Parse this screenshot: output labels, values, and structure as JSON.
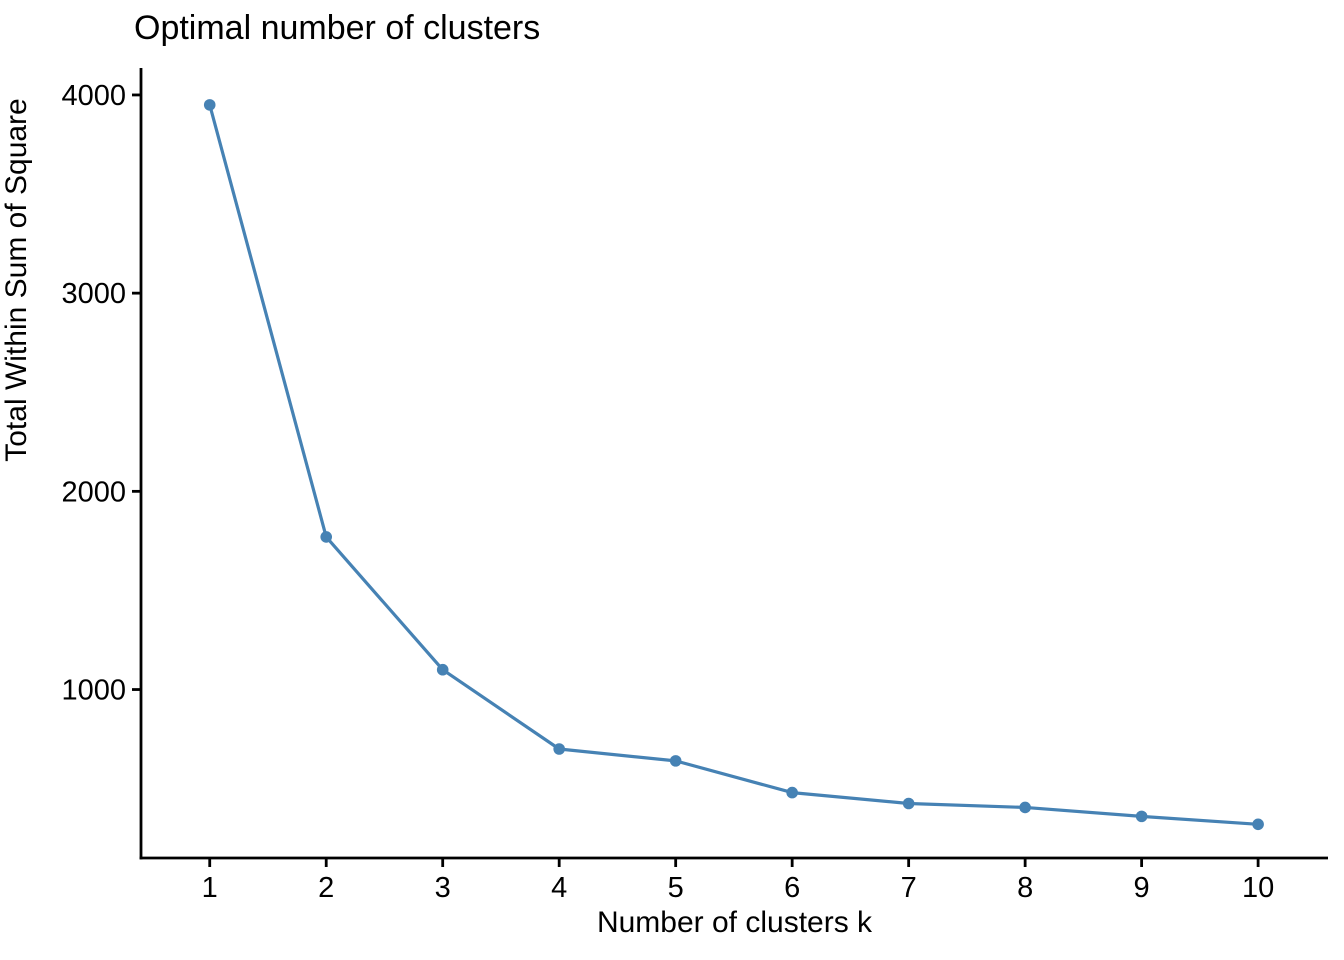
{
  "chart_data": {
    "type": "line",
    "title": "Optimal number of clusters",
    "xlabel": "Number of clusters k",
    "ylabel": "Total Within Sum of Square",
    "x": [
      1,
      2,
      3,
      4,
      5,
      6,
      7,
      8,
      9,
      10
    ],
    "series": [
      {
        "name": "Total within sum of square",
        "values": [
          3950,
          1770,
          1100,
          700,
          640,
          480,
          425,
          405,
          360,
          320
        ]
      }
    ],
    "x_ticks": [
      "1",
      "2",
      "3",
      "4",
      "5",
      "6",
      "7",
      "8",
      "9",
      "10"
    ],
    "y_ticks": [
      1000,
      2000,
      3000,
      4000
    ],
    "y_tick_labels": [
      "1000",
      "2000",
      "3000",
      "4000"
    ],
    "xlim": [
      0.41,
      10.6
    ],
    "ylim": [
      150,
      4136
    ],
    "grid": false,
    "legend_position": "none",
    "line_color": "#4682B4",
    "point_color": "#4682B4",
    "axis_color": "#000000",
    "background_color": "#ffffff"
  }
}
